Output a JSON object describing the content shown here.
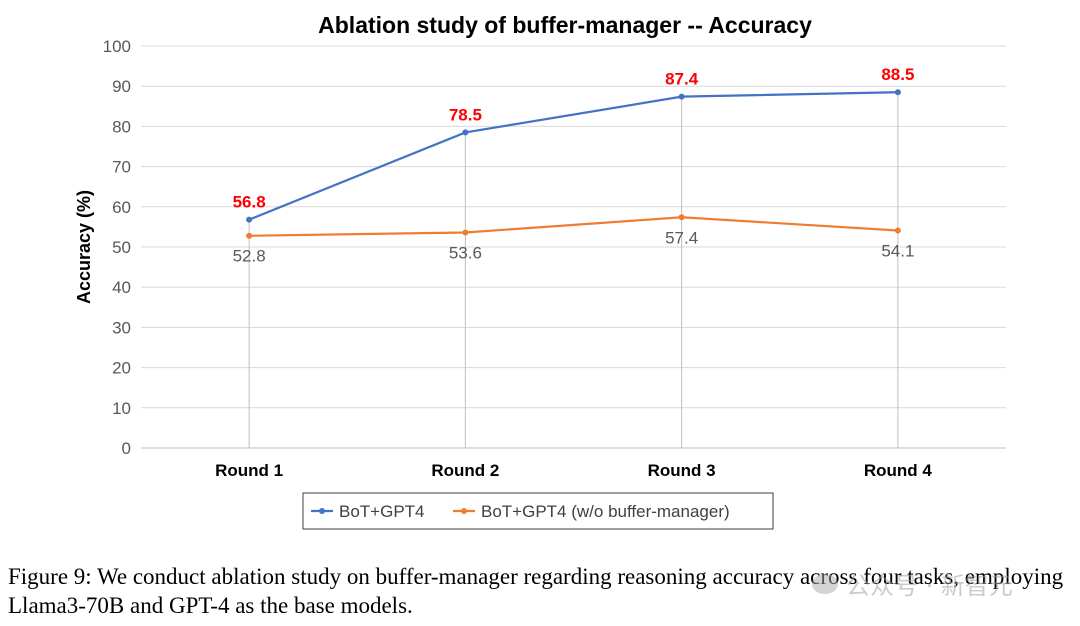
{
  "chart_data": {
    "type": "line",
    "title": "Ablation study of buffer-manager -- Accuracy",
    "xlabel": "",
    "ylabel": "Accuracy (%)",
    "categories": [
      "Round 1",
      "Round 2",
      "Round 3",
      "Round 4"
    ],
    "ylim": [
      0,
      100
    ],
    "yticks": [
      0,
      10,
      20,
      30,
      40,
      50,
      60,
      70,
      80,
      90,
      100
    ],
    "grid": "horizontal",
    "legend_position": "bottom",
    "series": [
      {
        "name": "BoT+GPT4",
        "values": [
          56.8,
          78.5,
          87.4,
          88.5
        ],
        "labels": [
          "56.8",
          "78.5",
          "87.4",
          "88.5"
        ],
        "color": "#4472c4",
        "label_color": "#ff0000"
      },
      {
        "name": "BoT+GPT4 (w/o buffer-manager)",
        "values": [
          52.8,
          53.6,
          57.4,
          54.1
        ],
        "labels": [
          "52.8",
          "53.6",
          "57.4",
          "54.1"
        ],
        "color": "#ed7d31",
        "label_color": "#595959"
      }
    ]
  },
  "caption": "Figure 9: We conduct ablation study on buffer-manager regarding reasoning accuracy across four tasks, employing Llama3-70B and GPT-4 as the base models.",
  "watermark": {
    "icon": "wechat-icon",
    "text": "公众号 · 新智元"
  }
}
